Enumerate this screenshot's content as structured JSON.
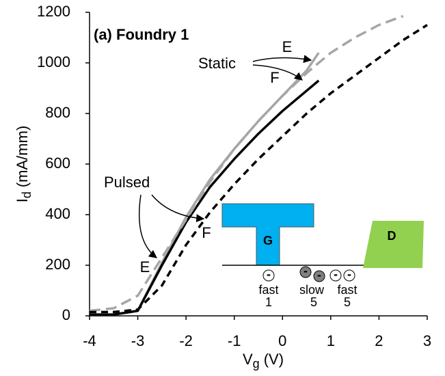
{
  "chart_data": {
    "type": "line",
    "title": "(a) Foundry 1",
    "x_label": {
      "main": "V",
      "sub": "g",
      "unit": "(V)"
    },
    "y_label": {
      "main": "I",
      "sub": "d",
      "unit": "(mA/mm)"
    },
    "x": [
      -4,
      -3.5,
      -3,
      -2.5,
      -2,
      -1.5,
      -1,
      -0.5,
      0,
      0.5,
      0.75,
      1,
      1.5,
      2,
      2.5,
      3
    ],
    "series": [
      {
        "color": "#a6a6a6",
        "dash": false,
        "values": [
          5,
          5,
          20,
          210,
          390,
          540,
          660,
          770,
          870,
          970,
          1040,
          null,
          null,
          null,
          null,
          null
        ]
      },
      {
        "color": "#000000",
        "dash": false,
        "values": [
          5,
          5,
          20,
          200,
          370,
          510,
          620,
          720,
          810,
          890,
          930,
          null,
          null,
          null,
          null,
          null
        ]
      },
      {
        "color": "#a6a6a6",
        "dash": true,
        "values": [
          20,
          30,
          80,
          230,
          380,
          530,
          660,
          770,
          870,
          960,
          1000,
          1040,
          1100,
          1150,
          1185,
          null
        ]
      },
      {
        "color": "#000000",
        "dash": true,
        "values": [
          15,
          15,
          25,
          120,
          280,
          410,
          520,
          620,
          710,
          800,
          840,
          880,
          950,
          1020,
          1090,
          1150
        ]
      }
    ],
    "xlim": [
      -4,
      3
    ],
    "ylim": [
      0,
      1200
    ],
    "xticks": [
      -4,
      -3,
      -2,
      -1,
      0,
      1,
      2,
      3
    ],
    "yticks": [
      0,
      200,
      400,
      600,
      800,
      1000,
      1200
    ],
    "annotations": {
      "static": "Static",
      "static_e": "E",
      "static_f": "F",
      "pulsed": "Pulsed",
      "pulsed_e": "E",
      "pulsed_f": "F",
      "gate": "G",
      "drain": "D",
      "trap1_speed": "fast",
      "trap1_count": "1",
      "trap2_speed": "slow",
      "trap2_count": "5",
      "trap3_speed": "fast",
      "trap3_count": "5",
      "electron": "-"
    }
  }
}
